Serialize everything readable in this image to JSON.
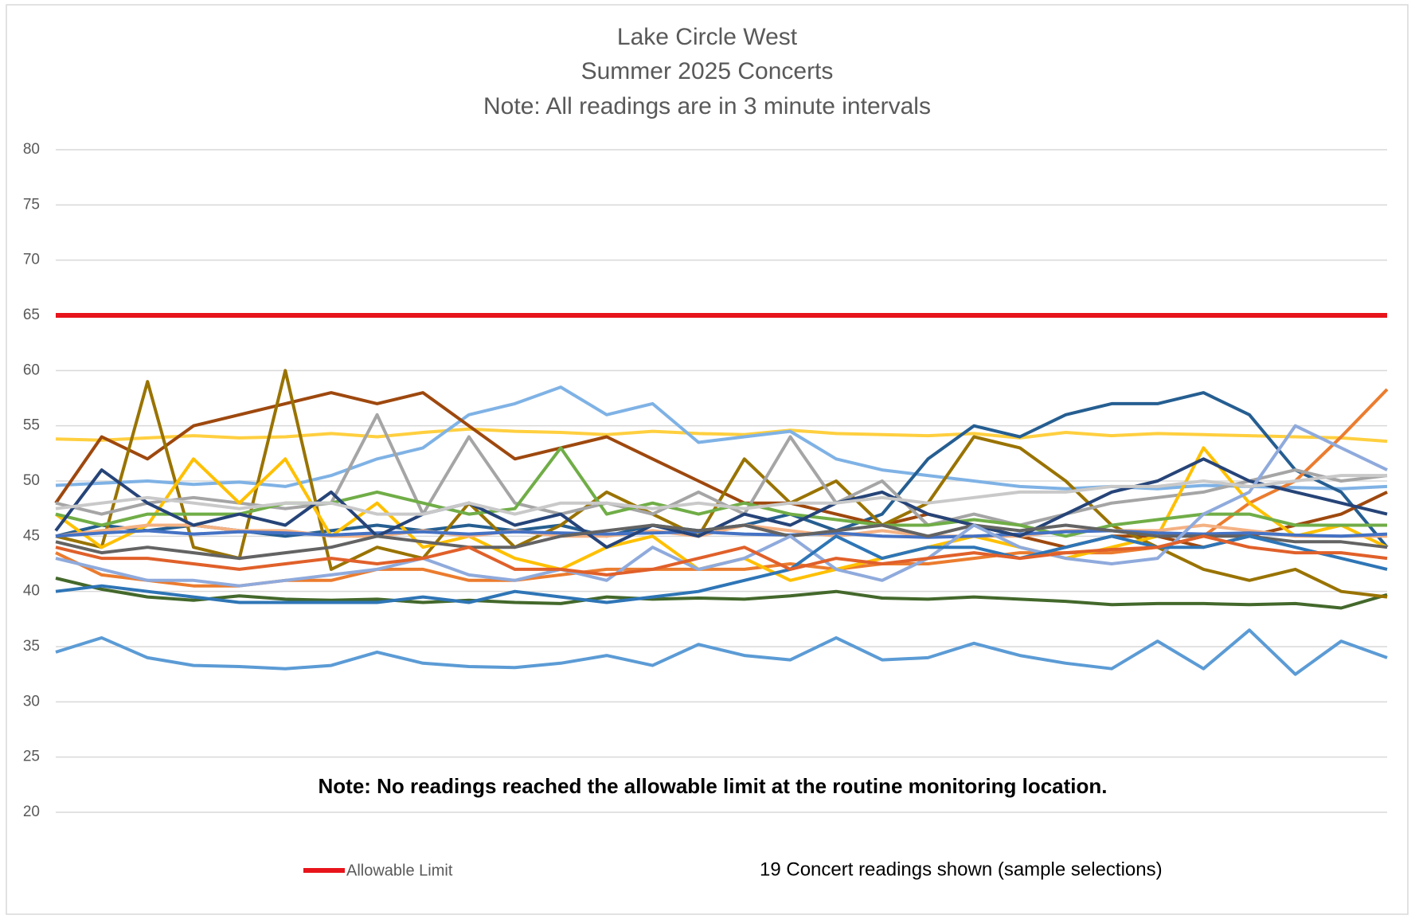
{
  "chart_data": {
    "type": "line",
    "title": [
      "Lake Circle West",
      "Summer 2025 Concerts",
      "Note: All readings are in 3 minute intervals"
    ],
    "annotation": "Note: No readings reached the allowable limit at the routine monitoring location.",
    "legend_note": "19 Concert readings shown (sample selections)",
    "ylim": [
      20,
      80
    ],
    "yticks": [
      20,
      25,
      30,
      35,
      40,
      45,
      50,
      55,
      60,
      65,
      70,
      75,
      80
    ],
    "grid": true,
    "series": [
      {
        "color": "#5b9bd5",
        "values": [
          34.5,
          35.8,
          34,
          33.3,
          33.2,
          33,
          33.3,
          34.5,
          33.5,
          33.2,
          33.1,
          33.5,
          34.2,
          33.3,
          35.2,
          34.2,
          33.8,
          35.8,
          33.8,
          34,
          35.3,
          34.2,
          33.5,
          33,
          35.5,
          33,
          36.5,
          32.5,
          35.5,
          34
        ]
      },
      {
        "color": "#43682b",
        "values": [
          41.2,
          40.2,
          39.5,
          39.2,
          39.6,
          39.3,
          39.2,
          39.3,
          39.0,
          39.2,
          39.0,
          38.9,
          39.5,
          39.3,
          39.4,
          39.3,
          39.6,
          40,
          39.4,
          39.3,
          39.5,
          39.3,
          39.1,
          38.8,
          38.9,
          38.9,
          38.8,
          38.9,
          38.5,
          39.7
        ]
      },
      {
        "color": "#ffcf3f",
        "values": [
          53.8,
          53.7,
          53.9,
          54.1,
          53.9,
          54,
          54.3,
          54,
          54.4,
          54.7,
          54.5,
          54.4,
          54.2,
          54.5,
          54.3,
          54.2,
          54.6,
          54.3,
          54.2,
          54.1,
          54.3,
          53.9,
          54.4,
          54.1,
          54.3,
          54.2,
          54.1,
          54,
          53.9,
          53.6
        ]
      },
      {
        "color": "#7fb2e5",
        "values": [
          49.6,
          49.8,
          50,
          49.7,
          49.9,
          49.5,
          50.5,
          52,
          53,
          56,
          57,
          58.5,
          56,
          57,
          53.5,
          54,
          54.5,
          52,
          51,
          50.5,
          50,
          49.5,
          49.3,
          49.5,
          49.3,
          49.6,
          49.5,
          49.4,
          49.3,
          49.5
        ]
      },
      {
        "color": "#255e91",
        "values": [
          45,
          46,
          45.5,
          46,
          45.5,
          45,
          45.5,
          46,
          45.5,
          46,
          45.5,
          46,
          45,
          46,
          45.5,
          46,
          47,
          45.5,
          47,
          52,
          55,
          54,
          56,
          57,
          57,
          58,
          56,
          51,
          49,
          44
        ]
      },
      {
        "color": "#9e480e",
        "values": [
          48,
          54,
          52,
          55,
          56,
          57,
          58,
          57,
          58,
          55,
          52,
          53,
          54,
          52,
          50,
          48,
          48,
          47,
          46,
          47,
          46,
          45,
          44,
          45,
          45,
          44,
          45,
          46,
          47,
          49
        ]
      },
      {
        "color": "#eb7c2f",
        "values": [
          43.5,
          41.5,
          41,
          40.5,
          40.5,
          41,
          41,
          42,
          42,
          41,
          41,
          41.5,
          42,
          42,
          42,
          42,
          42.5,
          42,
          42.5,
          42.5,
          43,
          43.5,
          43.5,
          43.5,
          44,
          45,
          48,
          50,
          54,
          58.3
        ]
      },
      {
        "color": "#997300",
        "values": [
          45,
          44,
          59,
          44,
          43,
          60,
          42,
          44,
          43,
          48,
          44,
          46,
          49,
          47,
          45,
          52,
          48,
          50,
          46,
          48,
          54,
          53,
          50,
          46,
          44,
          42,
          41,
          42,
          40,
          39.5
        ]
      },
      {
        "color": "#a5a5a5",
        "values": [
          48,
          47,
          48,
          48.5,
          48,
          47.5,
          48,
          56,
          47,
          54,
          48,
          47,
          48,
          47,
          49,
          47,
          54,
          48,
          50,
          46,
          47,
          46,
          47,
          48,
          48.5,
          49,
          50,
          51,
          50,
          50.5
        ]
      },
      {
        "color": "#ffc000",
        "values": [
          47,
          44,
          46,
          52,
          48,
          52,
          45,
          48,
          44,
          45,
          43,
          42,
          44,
          45,
          42,
          43,
          41,
          42,
          43,
          44,
          45,
          44,
          43,
          44,
          45,
          53,
          48,
          45,
          46,
          44
        ]
      },
      {
        "color": "#70ad47",
        "values": [
          47,
          46,
          47,
          47,
          47,
          48,
          48,
          49,
          48,
          47,
          47.5,
          53,
          47,
          48,
          47,
          48,
          47,
          46.5,
          46,
          46,
          46.5,
          46,
          45,
          46,
          46.5,
          47,
          47,
          46,
          46,
          46
        ]
      },
      {
        "color": "#f4b183",
        "values": [
          45,
          45.5,
          46,
          46,
          45.5,
          45.5,
          45,
          45,
          45.5,
          45,
          45.5,
          45,
          45,
          45.5,
          45,
          46,
          45.5,
          45,
          45.5,
          45,
          45,
          45,
          45.5,
          45.5,
          45.5,
          46,
          45.5,
          45,
          45,
          45
        ]
      },
      {
        "color": "#4472c4",
        "values": [
          45,
          45.3,
          45.5,
          45.2,
          45.4,
          45.3,
          45.1,
          45.3,
          45.4,
          45.2,
          45.4,
          45.3,
          45.2,
          45.3,
          45.4,
          45.2,
          45.1,
          45.3,
          45,
          44.9,
          45,
          45.2,
          45.4,
          45.5,
          45.3,
          45.2,
          45.3,
          45.1,
          45,
          45.2
        ]
      },
      {
        "color": "#264478",
        "values": [
          45.5,
          51,
          48,
          46,
          47,
          46,
          49,
          45,
          47,
          48,
          46,
          47,
          44,
          46,
          45,
          47,
          46,
          48,
          49,
          47,
          46,
          45,
          47,
          49,
          50,
          52,
          50,
          49,
          48,
          47
        ]
      },
      {
        "color": "#636363",
        "values": [
          44.5,
          43.5,
          44,
          43.5,
          43,
          43.5,
          44,
          45,
          44.5,
          44,
          44,
          45,
          45.5,
          46,
          45.5,
          46,
          45,
          45.5,
          46,
          45,
          46,
          45.5,
          46,
          45.5,
          45,
          45,
          45,
          44.5,
          44.5,
          44
        ]
      },
      {
        "color": "#8faadc",
        "values": [
          43,
          42,
          41,
          41,
          40.5,
          41,
          41.5,
          42,
          43,
          41.5,
          41,
          42,
          41,
          44,
          42,
          43,
          45,
          42,
          41,
          43,
          46,
          44,
          43,
          42.5,
          43,
          47,
          49,
          55,
          53,
          51
        ]
      },
      {
        "color": "#2e75b6",
        "values": [
          40,
          40.5,
          40,
          39.5,
          39,
          39,
          39,
          39,
          39.5,
          39,
          40,
          39.5,
          39,
          39.5,
          40,
          41,
          42,
          45,
          43,
          44,
          44,
          43,
          44,
          45,
          44,
          44,
          45,
          44,
          43,
          42
        ]
      },
      {
        "color": "#e0602a",
        "values": [
          44,
          43,
          43,
          42.5,
          42,
          42.5,
          43,
          42.5,
          43,
          44,
          42,
          42,
          41.5,
          42,
          43,
          44,
          42,
          43,
          42.5,
          43,
          43.5,
          43,
          43.5,
          43.8,
          44,
          45,
          44,
          43.5,
          43.5,
          43
        ]
      },
      {
        "color": "#c9c9c9",
        "values": [
          47.5,
          48,
          48.5,
          48,
          47.5,
          48,
          48,
          47,
          47,
          48,
          47,
          48,
          48,
          47.5,
          48,
          47.5,
          48,
          48,
          48.5,
          48,
          48.5,
          49,
          49,
          49.5,
          49.5,
          50,
          49.5,
          50,
          50.5,
          50.5
        ]
      },
      {
        "name": "Allowable Limit",
        "color": "#e8141b",
        "width": 6,
        "values": [
          65,
          65,
          65,
          65,
          65,
          65,
          65,
          65,
          65,
          65,
          65,
          65,
          65,
          65,
          65,
          65,
          65,
          65,
          65,
          65,
          65,
          65,
          65,
          65,
          65,
          65,
          65,
          65,
          65,
          65
        ]
      }
    ]
  }
}
